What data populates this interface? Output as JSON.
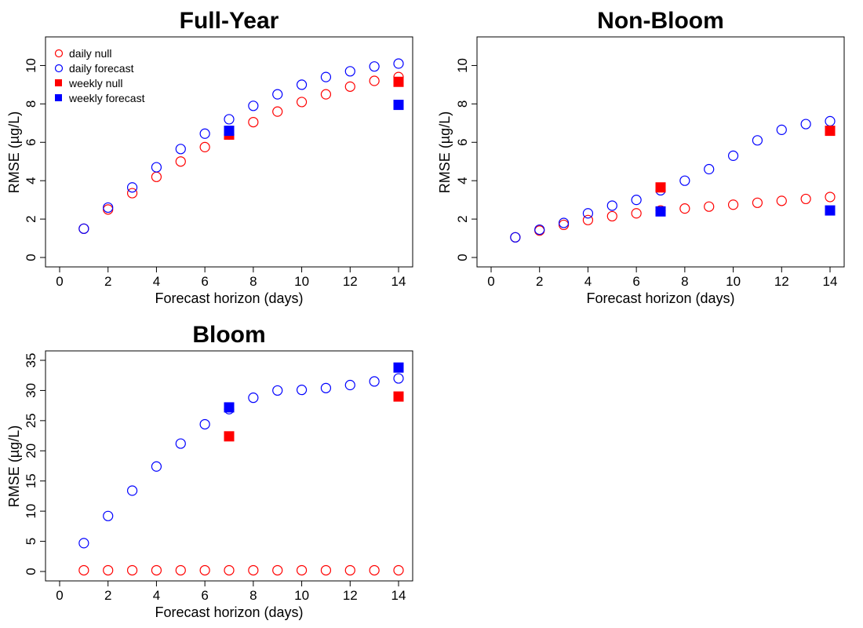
{
  "colors": {
    "null": "#ff0000",
    "forecast": "#0000ff"
  },
  "legend": {
    "placement": "top-left",
    "entries": [
      {
        "label": "daily null",
        "marker": "open-circle",
        "color": "#ff0000"
      },
      {
        "label": "daily forecast",
        "marker": "open-circle",
        "color": "#0000ff"
      },
      {
        "label": "weekly null",
        "marker": "filled-square",
        "color": "#ff0000"
      },
      {
        "label": "weekly forecast",
        "marker": "filled-square",
        "color": "#0000ff"
      }
    ]
  },
  "chart_data": [
    {
      "type": "scatter",
      "title": "Full-Year",
      "xlabel": "Forecast horizon (days)",
      "ylabel": "RMSE (µg/L)",
      "xlim": [
        0,
        14
      ],
      "ylim": [
        0,
        11
      ],
      "xticks": [
        0,
        2,
        4,
        6,
        8,
        10,
        12,
        14
      ],
      "yticks": [
        0,
        2,
        4,
        6,
        8,
        10
      ],
      "grid": false,
      "series": [
        {
          "name": "daily null",
          "marker": "open-circle",
          "color": "#ff0000",
          "x": [
            1,
            2,
            3,
            4,
            5,
            6,
            7,
            8,
            9,
            10,
            11,
            12,
            13,
            14
          ],
          "y": [
            1.5,
            2.5,
            3.35,
            4.2,
            5.0,
            5.75,
            6.4,
            7.05,
            7.6,
            8.1,
            8.5,
            8.9,
            9.2,
            9.4
          ]
        },
        {
          "name": "daily forecast",
          "marker": "open-circle",
          "color": "#0000ff",
          "x": [
            1,
            2,
            3,
            4,
            5,
            6,
            7,
            8,
            9,
            10,
            11,
            12,
            13,
            14
          ],
          "y": [
            1.5,
            2.6,
            3.65,
            4.7,
            5.65,
            6.45,
            7.2,
            7.9,
            8.5,
            9.0,
            9.4,
            9.7,
            9.95,
            10.1
          ]
        },
        {
          "name": "weekly null",
          "marker": "filled-square",
          "color": "#ff0000",
          "x": [
            7,
            14
          ],
          "y": [
            6.4,
            9.15
          ]
        },
        {
          "name": "weekly forecast",
          "marker": "filled-square",
          "color": "#0000ff",
          "x": [
            7,
            14
          ],
          "y": [
            6.6,
            7.95
          ]
        }
      ]
    },
    {
      "type": "scatter",
      "title": "Non-Bloom",
      "xlabel": "Forecast horizon (days)",
      "ylabel": "RMSE (µg/L)",
      "xlim": [
        0,
        14
      ],
      "ylim": [
        0,
        11
      ],
      "xticks": [
        0,
        2,
        4,
        6,
        8,
        10,
        12,
        14
      ],
      "yticks": [
        0,
        2,
        4,
        6,
        8,
        10
      ],
      "grid": false,
      "series": [
        {
          "name": "daily null",
          "marker": "open-circle",
          "color": "#ff0000",
          "x": [
            1,
            2,
            3,
            4,
            5,
            6,
            7,
            8,
            9,
            10,
            11,
            12,
            13,
            14
          ],
          "y": [
            1.05,
            1.4,
            1.7,
            1.95,
            2.15,
            2.3,
            2.45,
            2.55,
            2.65,
            2.75,
            2.85,
            2.95,
            3.05,
            3.15
          ]
        },
        {
          "name": "daily forecast",
          "marker": "open-circle",
          "color": "#0000ff",
          "x": [
            1,
            2,
            3,
            4,
            5,
            6,
            7,
            8,
            9,
            10,
            11,
            12,
            13,
            14
          ],
          "y": [
            1.05,
            1.45,
            1.8,
            2.3,
            2.7,
            3.0,
            3.5,
            4.0,
            4.6,
            5.3,
            6.1,
            6.65,
            6.95,
            7.1
          ]
        },
        {
          "name": "weekly null",
          "marker": "filled-square",
          "color": "#ff0000",
          "x": [
            7,
            14
          ],
          "y": [
            3.65,
            6.6
          ]
        },
        {
          "name": "weekly forecast",
          "marker": "filled-square",
          "color": "#0000ff",
          "x": [
            7,
            14
          ],
          "y": [
            2.4,
            2.45
          ]
        }
      ]
    },
    {
      "type": "scatter",
      "title": "Bloom",
      "xlabel": "Forecast horizon (days)",
      "ylabel": "RMSE (µg/L)",
      "xlim": [
        0,
        14
      ],
      "ylim": [
        0,
        35
      ],
      "xticks": [
        0,
        2,
        4,
        6,
        8,
        10,
        12,
        14
      ],
      "yticks": [
        0,
        5,
        10,
        15,
        20,
        25,
        30,
        35
      ],
      "grid": false,
      "series": [
        {
          "name": "daily null",
          "marker": "open-circle",
          "color": "#ff0000",
          "x": [
            1,
            2,
            3,
            4,
            5,
            6,
            7,
            8,
            9,
            10,
            11,
            12,
            13,
            14
          ],
          "y": [
            0.2,
            0.2,
            0.2,
            0.2,
            0.2,
            0.2,
            0.2,
            0.2,
            0.2,
            0.2,
            0.2,
            0.2,
            0.2,
            0.2
          ]
        },
        {
          "name": "daily forecast",
          "marker": "open-circle",
          "color": "#0000ff",
          "x": [
            1,
            2,
            3,
            4,
            5,
            6,
            7,
            8,
            9,
            10,
            11,
            12,
            13,
            14
          ],
          "y": [
            4.7,
            9.2,
            13.4,
            17.4,
            21.2,
            24.4,
            26.9,
            28.8,
            30.0,
            30.1,
            30.4,
            30.9,
            31.5,
            32.0
          ]
        },
        {
          "name": "weekly null",
          "marker": "filled-square",
          "color": "#ff0000",
          "x": [
            7,
            14
          ],
          "y": [
            22.4,
            29.0
          ]
        },
        {
          "name": "weekly forecast",
          "marker": "filled-square",
          "color": "#0000ff",
          "x": [
            7,
            14
          ],
          "y": [
            27.2,
            33.8
          ]
        }
      ]
    }
  ]
}
